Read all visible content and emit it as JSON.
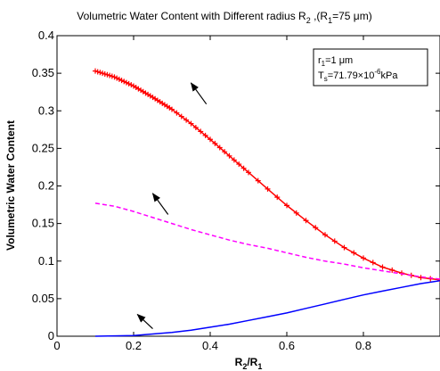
{
  "chart_data": {
    "type": "line",
    "title": {
      "main": "Volumetric Water Content with Different radius R",
      "sub1": "2",
      "mid": " ,(R",
      "sub2": "1",
      "end": "=75 μm)"
    },
    "xlabel": {
      "main": "R",
      "sub1": "2",
      "mid": "/R",
      "sub2": "1"
    },
    "ylabel": "Volumetric Water Content",
    "xlim": [
      0,
      1
    ],
    "ylim": [
      0,
      0.4
    ],
    "xticks": [
      0,
      0.2,
      0.4,
      0.6,
      0.8
    ],
    "xtick_labels": [
      "0",
      "0.2",
      "0.4",
      "0.6",
      "0.8"
    ],
    "yticks": [
      0,
      0.05,
      0.1,
      0.15,
      0.2,
      0.25,
      0.3,
      0.35,
      0.4
    ],
    "ytick_labels": [
      "0",
      "0.05",
      "0.1",
      "0.15",
      "0.2",
      "0.25",
      "0.3",
      "0.35",
      "0.4"
    ],
    "grid": false,
    "legend_box": {
      "line1": {
        "main": "r",
        "sub": "1",
        "rest": "=1 μm"
      },
      "line2": {
        "main": "T",
        "sub": "s",
        "mid": "=71.79×10",
        "sup": "-6",
        "rest": "kPa"
      }
    },
    "series": [
      {
        "color": "#ff0000",
        "line_style": "solid",
        "marker": "plus",
        "x": [
          0.1,
          0.15,
          0.2,
          0.25,
          0.3,
          0.35,
          0.4,
          0.45,
          0.5,
          0.55,
          0.6,
          0.65,
          0.7,
          0.75,
          0.8,
          0.85,
          0.9,
          0.95,
          1.0
        ],
        "y": [
          0.353,
          0.345,
          0.333,
          0.318,
          0.302,
          0.283,
          0.262,
          0.24,
          0.218,
          0.196,
          0.174,
          0.154,
          0.135,
          0.118,
          0.104,
          0.092,
          0.084,
          0.078,
          0.075
        ]
      },
      {
        "color": "#ff00ff",
        "line_style": "dashed",
        "marker": "none",
        "x": [
          0.1,
          0.15,
          0.2,
          0.25,
          0.3,
          0.35,
          0.4,
          0.45,
          0.5,
          0.55,
          0.6,
          0.65,
          0.7,
          0.75,
          0.8,
          0.85,
          0.9,
          0.95,
          1.0
        ],
        "y": [
          0.177,
          0.173,
          0.166,
          0.158,
          0.15,
          0.142,
          0.135,
          0.128,
          0.122,
          0.117,
          0.111,
          0.105,
          0.1,
          0.096,
          0.091,
          0.087,
          0.083,
          0.079,
          0.076
        ]
      },
      {
        "color": "#0000ff",
        "line_style": "solid",
        "marker": "none",
        "x": [
          0.1,
          0.15,
          0.2,
          0.25,
          0.3,
          0.35,
          0.4,
          0.45,
          0.5,
          0.55,
          0.6,
          0.65,
          0.7,
          0.75,
          0.8,
          0.85,
          0.9,
          0.95,
          1.0
        ],
        "y": [
          0.0,
          0.0005,
          0.001,
          0.003,
          0.005,
          0.008,
          0.012,
          0.016,
          0.021,
          0.026,
          0.031,
          0.037,
          0.043,
          0.049,
          0.055,
          0.06,
          0.065,
          0.07,
          0.074
        ]
      }
    ],
    "arrows": [
      {
        "x1": 0.39,
        "y1": 0.309,
        "x2": 0.35,
        "y2": 0.337
      },
      {
        "x1": 0.29,
        "y1": 0.162,
        "x2": 0.25,
        "y2": 0.19
      },
      {
        "x1": 0.25,
        "y1": 0.01,
        "x2": 0.21,
        "y2": 0.029
      }
    ]
  }
}
